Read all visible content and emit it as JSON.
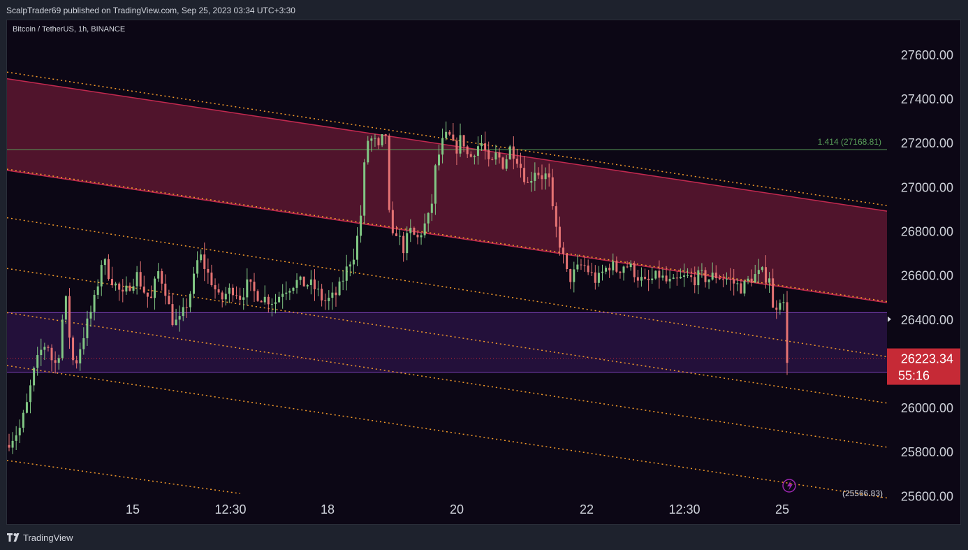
{
  "header": {
    "published_text": "ScalpTrader69 published on TradingView.com, Sep 25, 2023 03:34 UTC+3:30"
  },
  "symbol": {
    "title": "Bitcoin / TetherUS, 1h, BINANCE"
  },
  "footer": {
    "brand": "TradingView",
    "logo_icon": "tradingview-logo-icon"
  },
  "colors": {
    "background": "#0c0715",
    "bull": "#81c784",
    "bear": "#e57373",
    "channel_fill": "#5d1630",
    "channel_line": "#c2294f",
    "dotted": "#f59b2a",
    "zone_fill": "#23103a",
    "zone_line": "#7b40b8",
    "fib_line": "#5aa05a",
    "price_badge": "#c62a36"
  },
  "chart_data": {
    "type": "candlestick",
    "title": "Bitcoin / TetherUS, 1h, BINANCE",
    "ylim": [
      25600,
      27700
    ],
    "y_ticks": [
      "27600.00",
      "27400.00",
      "27200.00",
      "27000.00",
      "26800.00",
      "26600.00",
      "26400.00",
      "26200.00",
      "26000.00",
      "25800.00",
      "25600.00"
    ],
    "x_ticks": [
      "15",
      "12:30",
      "18",
      "20",
      "22",
      "12:30",
      "25"
    ],
    "last_price": {
      "value": 26223.34,
      "label": "26223.34",
      "countdown": "55:16"
    },
    "fib_level": {
      "value": 27168.81,
      "label": "1.414 (27168.81)"
    },
    "partial_label": "(25566.83)",
    "zone": {
      "top": 26430,
      "bottom": 26160
    },
    "regression_channel": {
      "upper": [
        [
          0,
          27490
        ],
        [
          1,
          26890
        ]
      ],
      "lower": [
        [
          0,
          27075
        ],
        [
          1,
          26475
        ]
      ]
    },
    "dotted_lines": [
      [
        [
          0,
          27520
        ],
        [
          1,
          26915
        ]
      ],
      [
        [
          0,
          27080
        ],
        [
          1,
          26480
        ]
      ],
      [
        [
          0,
          26860
        ],
        [
          1,
          26230
        ]
      ],
      [
        [
          0,
          26630
        ],
        [
          1,
          26020
        ]
      ],
      [
        [
          0,
          26430
        ],
        [
          1,
          25820
        ]
      ],
      [
        [
          0,
          26190
        ],
        [
          1,
          25590
        ]
      ],
      [
        [
          0,
          25760
        ],
        [
          0.265,
          25610
        ]
      ]
    ],
    "path": [
      [
        0,
        25830
      ],
      [
        0.02,
        25900
      ],
      [
        0.03,
        26000
      ],
      [
        0.04,
        26150
      ],
      [
        0.05,
        26250
      ],
      [
        0.06,
        26300
      ],
      [
        0.07,
        26180
      ],
      [
        0.08,
        26280
      ],
      [
        0.085,
        26550
      ],
      [
        0.095,
        26250
      ],
      [
        0.1,
        26180
      ],
      [
        0.11,
        26300
      ],
      [
        0.12,
        26400
      ],
      [
        0.13,
        26500
      ],
      [
        0.14,
        26680
      ],
      [
        0.15,
        26600
      ],
      [
        0.16,
        26550
      ],
      [
        0.17,
        26500
      ],
      [
        0.18,
        26560
      ],
      [
        0.19,
        26600
      ],
      [
        0.2,
        26530
      ],
      [
        0.21,
        26480
      ],
      [
        0.22,
        26620
      ],
      [
        0.23,
        26550
      ],
      [
        0.24,
        26400
      ],
      [
        0.25,
        26380
      ],
      [
        0.26,
        26450
      ],
      [
        0.27,
        26550
      ],
      [
        0.28,
        26700
      ],
      [
        0.29,
        26620
      ],
      [
        0.3,
        26560
      ],
      [
        0.31,
        26480
      ],
      [
        0.32,
        26520
      ],
      [
        0.33,
        26540
      ],
      [
        0.34,
        26500
      ],
      [
        0.35,
        26560
      ],
      [
        0.36,
        26520
      ],
      [
        0.37,
        26500
      ],
      [
        0.38,
        26490
      ],
      [
        0.39,
        26480
      ],
      [
        0.4,
        26530
      ],
      [
        0.41,
        26550
      ],
      [
        0.42,
        26570
      ],
      [
        0.43,
        26560
      ],
      [
        0.44,
        26560
      ],
      [
        0.45,
        26530
      ],
      [
        0.46,
        26480
      ],
      [
        0.47,
        26490
      ],
      [
        0.48,
        26520
      ],
      [
        0.49,
        26600
      ],
      [
        0.5,
        26680
      ],
      [
        0.505,
        26700
      ],
      [
        0.515,
        26900
      ],
      [
        0.52,
        27150
      ],
      [
        0.525,
        27230
      ],
      [
        0.53,
        27210
      ],
      [
        0.535,
        27200
      ],
      [
        0.54,
        27160
      ],
      [
        0.545,
        27220
      ],
      [
        0.55,
        27240
      ],
      [
        0.555,
        26850
      ],
      [
        0.56,
        26760
      ],
      [
        0.565,
        26800
      ],
      [
        0.575,
        26720
      ],
      [
        0.585,
        26800
      ],
      [
        0.595,
        26760
      ],
      [
        0.605,
        26820
      ],
      [
        0.615,
        26880
      ],
      [
        0.62,
        27060
      ],
      [
        0.63,
        27190
      ],
      [
        0.64,
        27240
      ],
      [
        0.65,
        27160
      ],
      [
        0.66,
        27230
      ],
      [
        0.67,
        27120
      ],
      [
        0.68,
        27180
      ],
      [
        0.69,
        27200
      ],
      [
        0.7,
        27080
      ],
      [
        0.71,
        27150
      ],
      [
        0.72,
        27100
      ],
      [
        0.73,
        27180
      ],
      [
        0.74,
        27130
      ],
      [
        0.75,
        27050
      ],
      [
        0.755,
        27010
      ],
      [
        0.765,
        27080
      ],
      [
        0.775,
        27050
      ],
      [
        0.785,
        27050
      ],
      [
        0.79,
        26900
      ],
      [
        0.795,
        26820
      ],
      [
        0.8,
        26760
      ],
      [
        0.805,
        26700
      ],
      [
        0.81,
        26620
      ],
      [
        0.815,
        26580
      ],
      [
        0.825,
        26620
      ],
      [
        0.835,
        26650
      ],
      [
        0.845,
        26610
      ],
      [
        0.855,
        26570
      ],
      [
        0.865,
        26620
      ],
      [
        0.875,
        26650
      ],
      [
        0.885,
        26620
      ],
      [
        0.895,
        26650
      ],
      [
        0.905,
        26630
      ],
      [
        0.915,
        26590
      ],
      [
        0.925,
        26560
      ],
      [
        0.935,
        26580
      ],
      [
        0.945,
        26600
      ],
      [
        0.955,
        26570
      ],
      [
        0.965,
        26560
      ],
      [
        0.975,
        26580
      ],
      [
        0.985,
        26590
      ],
      [
        0.995,
        26580
      ],
      [
        1.005,
        26600
      ],
      [
        1.015,
        26580
      ],
      [
        1.025,
        26600
      ],
      [
        1.035,
        26590
      ],
      [
        1.045,
        26580
      ],
      [
        1.055,
        26560
      ],
      [
        1.065,
        26540
      ],
      [
        1.075,
        26580
      ],
      [
        1.085,
        26600
      ],
      [
        1.095,
        26610
      ],
      [
        1.1,
        26590
      ],
      [
        1.105,
        26600
      ],
      [
        1.11,
        26420
      ],
      [
        1.115,
        26470
      ],
      [
        1.12,
        26500
      ],
      [
        1.125,
        26460
      ],
      [
        1.13,
        26223
      ]
    ]
  }
}
